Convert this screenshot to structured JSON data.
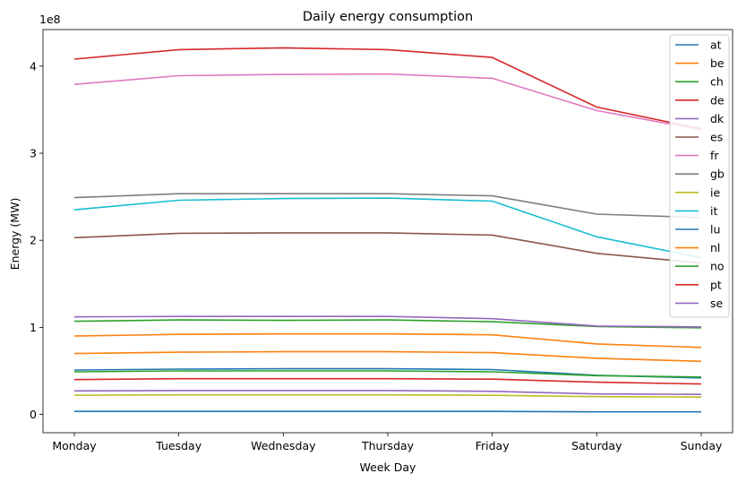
{
  "chart_data": {
    "type": "line",
    "title": "Daily energy consumption",
    "xlabel": "Week Day",
    "ylabel": "Energy (MW)",
    "y_offset_label": "1e8",
    "categories": [
      "Monday",
      "Tuesday",
      "Wednesday",
      "Thursday",
      "Friday",
      "Saturday",
      "Sunday"
    ],
    "yticks": [
      0,
      1,
      2,
      3,
      4
    ],
    "ylim": [
      -0.21,
      4.42
    ],
    "grid": false,
    "legend_position": "top-right",
    "series": [
      {
        "name": "at",
        "color": "#1f77b4",
        "values": [
          0.51,
          0.52,
          0.525,
          0.525,
          0.515,
          0.45,
          0.42
        ]
      },
      {
        "name": "be",
        "color": "#ff7f0e",
        "values": [
          0.7,
          0.715,
          0.72,
          0.72,
          0.71,
          0.645,
          0.61
        ]
      },
      {
        "name": "ch",
        "color": "#2ca02c",
        "values": [
          0.49,
          0.5,
          0.5,
          0.5,
          0.49,
          0.445,
          0.43
        ]
      },
      {
        "name": "de",
        "color": "#d62728",
        "values": [
          4.08,
          4.19,
          4.21,
          4.19,
          4.1,
          3.53,
          3.28
        ]
      },
      {
        "name": "dk",
        "color": "#9467bd",
        "values": [
          0.27,
          0.275,
          0.275,
          0.275,
          0.265,
          0.235,
          0.23
        ]
      },
      {
        "name": "es",
        "color": "#8c564b",
        "values": [
          2.03,
          2.08,
          2.085,
          2.085,
          2.06,
          1.85,
          1.74
        ]
      },
      {
        "name": "fr",
        "color": "#e377c2",
        "values": [
          3.79,
          3.89,
          3.905,
          3.91,
          3.86,
          3.49,
          3.27
        ]
      },
      {
        "name": "gb",
        "color": "#7f7f7f",
        "values": [
          2.49,
          2.535,
          2.535,
          2.535,
          2.51,
          2.3,
          2.26
        ]
      },
      {
        "name": "ie",
        "color": "#bcbd22",
        "values": [
          0.22,
          0.225,
          0.225,
          0.225,
          0.22,
          0.205,
          0.2
        ]
      },
      {
        "name": "it",
        "color": "#17becf",
        "values": [
          2.35,
          2.46,
          2.48,
          2.485,
          2.45,
          2.04,
          1.8
        ]
      },
      {
        "name": "lu",
        "color": "#1f77b4",
        "values": [
          0.035,
          0.035,
          0.035,
          0.035,
          0.035,
          0.03,
          0.03
        ]
      },
      {
        "name": "nl",
        "color": "#ff7f0e",
        "values": [
          0.9,
          0.92,
          0.925,
          0.925,
          0.915,
          0.81,
          0.77
        ]
      },
      {
        "name": "no",
        "color": "#2ca02c",
        "values": [
          1.07,
          1.085,
          1.08,
          1.085,
          1.065,
          1.01,
          0.995
        ]
      },
      {
        "name": "pt",
        "color": "#d62728",
        "values": [
          0.4,
          0.41,
          0.41,
          0.41,
          0.405,
          0.37,
          0.35
        ]
      },
      {
        "name": "se",
        "color": "#9467bd",
        "values": [
          1.12,
          1.125,
          1.125,
          1.125,
          1.1,
          1.015,
          1.005
        ]
      }
    ]
  }
}
